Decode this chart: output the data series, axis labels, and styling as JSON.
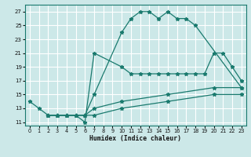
{
  "background_color": "#cce8e8",
  "grid_color": "#ffffff",
  "line_color": "#1a7a6e",
  "xlabel": "Humidex (Indice chaleur)",
  "xlim": [
    -0.5,
    23.5
  ],
  "ylim": [
    10.5,
    28
  ],
  "xticks": [
    0,
    1,
    2,
    3,
    4,
    5,
    6,
    7,
    8,
    9,
    10,
    11,
    12,
    13,
    14,
    15,
    16,
    17,
    18,
    19,
    20,
    21,
    22,
    23
  ],
  "yticks": [
    11,
    13,
    15,
    17,
    19,
    21,
    23,
    25,
    27
  ],
  "line1_x": [
    0,
    1,
    2,
    3,
    4,
    5,
    6,
    7,
    10,
    11,
    12,
    13,
    14,
    15,
    16,
    17,
    18,
    23
  ],
  "line1_y": [
    14,
    13,
    12,
    12,
    12,
    12,
    12,
    15,
    24,
    26,
    27,
    27,
    26,
    27,
    26,
    26,
    25,
    16
  ],
  "line2_x": [
    2,
    3,
    4,
    5,
    6,
    7,
    10,
    11,
    12,
    13,
    14,
    15,
    16,
    17,
    18,
    19,
    20,
    21,
    22,
    23
  ],
  "line2_y": [
    12,
    12,
    12,
    12,
    11,
    21,
    19,
    18,
    18,
    18,
    18,
    18,
    18,
    18,
    18,
    18,
    21,
    21,
    19,
    17
  ],
  "line3_x": [
    2,
    3,
    4,
    5,
    6,
    7,
    10,
    15,
    20,
    23
  ],
  "line3_y": [
    12,
    12,
    12,
    12,
    12,
    13,
    14,
    15,
    16,
    16
  ],
  "line4_x": [
    2,
    3,
    4,
    5,
    6,
    7,
    10,
    15,
    20,
    23
  ],
  "line4_y": [
    12,
    12,
    12,
    12,
    12,
    12,
    13,
    14,
    15,
    15
  ]
}
